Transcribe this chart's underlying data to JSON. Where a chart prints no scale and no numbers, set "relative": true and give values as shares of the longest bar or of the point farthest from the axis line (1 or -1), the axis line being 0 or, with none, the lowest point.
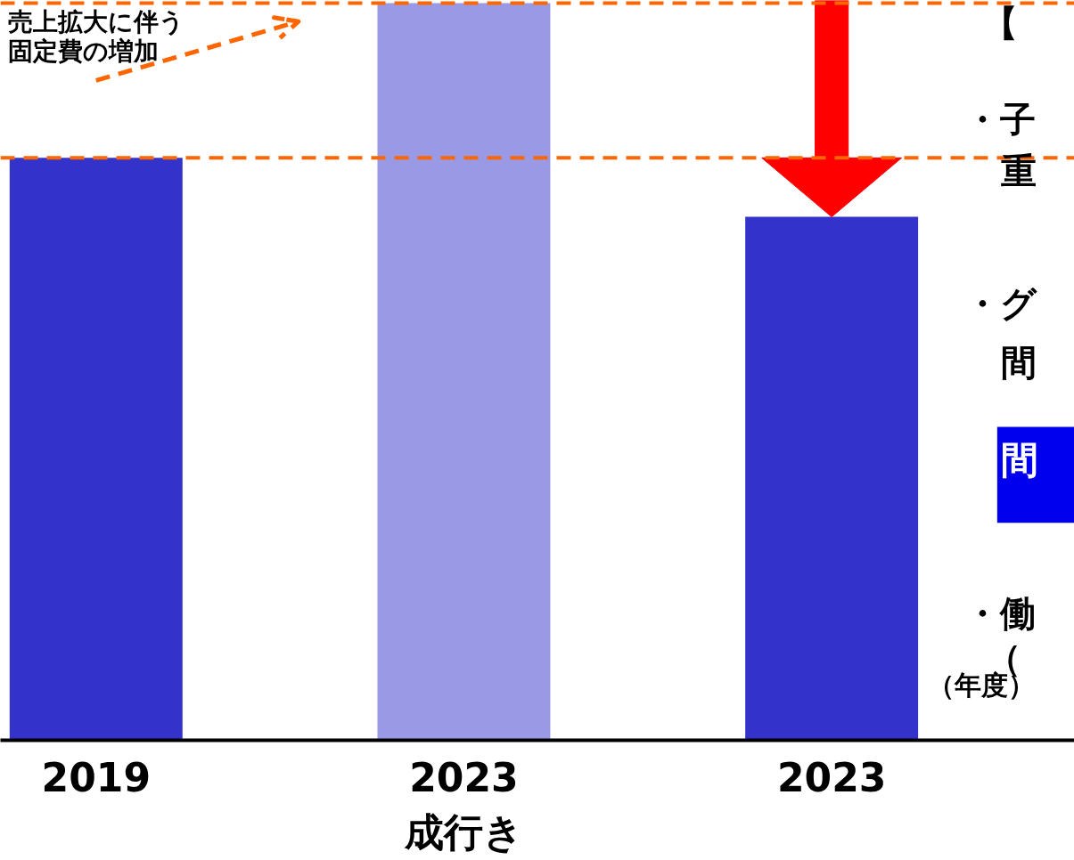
{
  "chart_data": {
    "type": "bar",
    "relative": true,
    "categories": [
      "2019",
      "2023\n成行き",
      "2023"
    ],
    "colors": [
      "#3333cc",
      "#9999e6",
      "#3333cc"
    ],
    "values": [
      0.79,
      1,
      0.71
    ],
    "xlabel": "（年度）",
    "ref_lines": [
      {
        "axis": "y",
        "value": 0.79,
        "color": "#ff6600",
        "line_style": "dashed"
      },
      {
        "axis": "y",
        "value": 1,
        "color": "#ff6600",
        "line_style": "dashed"
      }
    ],
    "annotations": [
      "売上拡大に伴う",
      "固定費の増加",
      "【",
      "・子",
      "重",
      "・グ",
      "間",
      "間",
      "・働",
      "（"
    ],
    "grid": false
  }
}
